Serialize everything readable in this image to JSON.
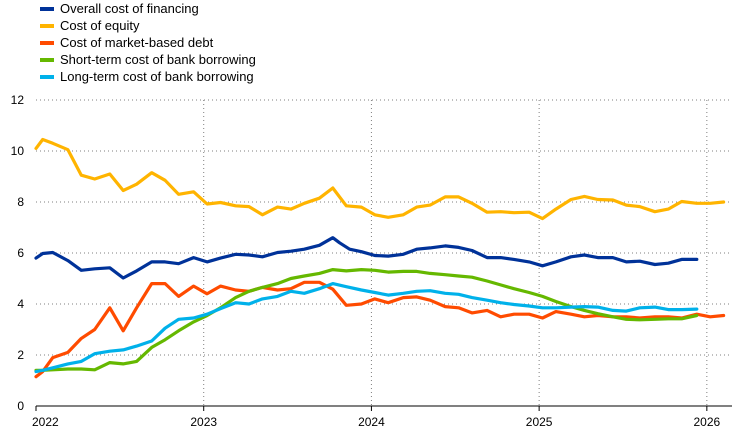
{
  "chart_data": {
    "type": "line",
    "title": "",
    "xlabel": "",
    "ylabel": "",
    "ylim": [
      0,
      12
    ],
    "yticks": [
      0,
      2,
      4,
      6,
      8,
      10,
      12
    ],
    "xlim": [
      2022.0,
      2026.15
    ],
    "xticks": [
      {
        "value": 2022,
        "label": "2022"
      },
      {
        "value": 2023,
        "label": "2023"
      },
      {
        "value": 2024,
        "label": "2024"
      },
      {
        "value": 2025,
        "label": "2025"
      },
      {
        "value": 2026,
        "label": "2026"
      }
    ],
    "x_unit": "year (fractional, monthly observations)",
    "grid": "horizontal-dashed",
    "legend_position": "top-left",
    "series": [
      {
        "name": "Overall cost of financing",
        "color": "#003299",
        "x": [
          2022.0,
          2022.04,
          2022.1,
          2022.19,
          2022.27,
          2022.35,
          2022.44,
          2022.52,
          2022.6,
          2022.69,
          2022.77,
          2022.85,
          2022.94,
          2023.02,
          2023.1,
          2023.19,
          2023.27,
          2023.35,
          2023.44,
          2023.52,
          2023.6,
          2023.69,
          2023.77,
          2023.81,
          2023.87,
          2023.94,
          2024.02,
          2024.1,
          2024.19,
          2024.27,
          2024.35,
          2024.44,
          2024.52,
          2024.6,
          2024.69,
          2024.77,
          2024.85,
          2024.94,
          2025.02,
          2025.1,
          2025.19,
          2025.27,
          2025.35,
          2025.44,
          2025.52,
          2025.6,
          2025.69,
          2025.77,
          2025.85,
          2025.94
        ],
        "y": [
          5.8,
          5.98,
          6.02,
          5.7,
          5.32,
          5.38,
          5.42,
          5.02,
          5.3,
          5.65,
          5.65,
          5.58,
          5.82,
          5.65,
          5.8,
          5.95,
          5.92,
          5.85,
          6.02,
          6.07,
          6.15,
          6.3,
          6.6,
          6.4,
          6.15,
          6.05,
          5.9,
          5.88,
          5.95,
          6.15,
          6.2,
          6.28,
          6.22,
          6.1,
          5.82,
          5.82,
          5.75,
          5.65,
          5.5,
          5.65,
          5.85,
          5.92,
          5.82,
          5.82,
          5.65,
          5.68,
          5.55,
          5.6,
          5.75,
          5.75
        ]
      },
      {
        "name": "Cost of equity",
        "color": "#FFB400",
        "x": [
          2022.0,
          2022.04,
          2022.1,
          2022.19,
          2022.27,
          2022.35,
          2022.44,
          2022.52,
          2022.6,
          2022.69,
          2022.77,
          2022.85,
          2022.94,
          2023.02,
          2023.1,
          2023.19,
          2023.27,
          2023.35,
          2023.44,
          2023.52,
          2023.6,
          2023.69,
          2023.77,
          2023.85,
          2023.94,
          2024.02,
          2024.1,
          2024.19,
          2024.27,
          2024.35,
          2024.44,
          2024.52,
          2024.6,
          2024.69,
          2024.77,
          2024.85,
          2024.94,
          2025.02,
          2025.1,
          2025.19,
          2025.27,
          2025.35,
          2025.44,
          2025.52,
          2025.6,
          2025.69,
          2025.77,
          2025.85,
          2025.94,
          2026.02,
          2026.1
        ],
        "y": [
          10.1,
          10.45,
          10.3,
          10.05,
          9.05,
          8.9,
          9.1,
          8.45,
          8.7,
          9.15,
          8.85,
          8.3,
          8.4,
          7.92,
          7.98,
          7.85,
          7.82,
          7.5,
          7.8,
          7.72,
          7.95,
          8.15,
          8.55,
          7.85,
          7.8,
          7.5,
          7.4,
          7.5,
          7.8,
          7.88,
          8.2,
          8.2,
          7.95,
          7.6,
          7.62,
          7.58,
          7.6,
          7.35,
          7.72,
          8.1,
          8.22,
          8.1,
          8.08,
          7.88,
          7.82,
          7.62,
          7.72,
          8.02,
          7.95,
          7.95,
          8.0
        ]
      },
      {
        "name": "Cost of market-based debt",
        "color": "#FF4B00",
        "x": [
          2022.0,
          2022.04,
          2022.1,
          2022.19,
          2022.27,
          2022.35,
          2022.44,
          2022.52,
          2022.6,
          2022.69,
          2022.77,
          2022.85,
          2022.94,
          2023.02,
          2023.1,
          2023.19,
          2023.27,
          2023.35,
          2023.44,
          2023.52,
          2023.6,
          2023.69,
          2023.77,
          2023.85,
          2023.94,
          2024.02,
          2024.1,
          2024.19,
          2024.27,
          2024.35,
          2024.44,
          2024.52,
          2024.6,
          2024.69,
          2024.77,
          2024.85,
          2024.94,
          2025.02,
          2025.1,
          2025.19,
          2025.27,
          2025.35,
          2025.44,
          2025.52,
          2025.6,
          2025.69,
          2025.77,
          2025.85,
          2025.94,
          2026.02,
          2026.1
        ],
        "y": [
          1.15,
          1.35,
          1.9,
          2.1,
          2.65,
          3.0,
          3.85,
          2.95,
          3.85,
          4.8,
          4.8,
          4.3,
          4.7,
          4.4,
          4.7,
          4.55,
          4.5,
          4.65,
          4.55,
          4.6,
          4.85,
          4.85,
          4.58,
          3.95,
          4.0,
          4.2,
          4.05,
          4.25,
          4.28,
          4.15,
          3.9,
          3.85,
          3.65,
          3.75,
          3.5,
          3.6,
          3.6,
          3.45,
          3.7,
          3.6,
          3.5,
          3.55,
          3.5,
          3.5,
          3.45,
          3.5,
          3.5,
          3.45,
          3.6,
          3.5,
          3.55
        ]
      },
      {
        "name": "Short-term cost of bank borrowing",
        "color": "#65B800",
        "x": [
          2022.0,
          2022.04,
          2022.1,
          2022.19,
          2022.27,
          2022.35,
          2022.44,
          2022.52,
          2022.6,
          2022.69,
          2022.77,
          2022.85,
          2022.94,
          2023.02,
          2023.1,
          2023.19,
          2023.27,
          2023.35,
          2023.44,
          2023.52,
          2023.6,
          2023.69,
          2023.77,
          2023.85,
          2023.94,
          2024.02,
          2024.1,
          2024.19,
          2024.27,
          2024.35,
          2024.44,
          2024.52,
          2024.6,
          2024.69,
          2024.77,
          2024.85,
          2024.94,
          2025.02,
          2025.1,
          2025.19,
          2025.27,
          2025.35,
          2025.44,
          2025.52,
          2025.6,
          2025.69,
          2025.77,
          2025.85,
          2025.94
        ],
        "y": [
          1.4,
          1.4,
          1.42,
          1.45,
          1.45,
          1.42,
          1.7,
          1.65,
          1.75,
          2.3,
          2.6,
          2.95,
          3.3,
          3.55,
          3.85,
          4.25,
          4.5,
          4.65,
          4.8,
          5.0,
          5.1,
          5.2,
          5.35,
          5.3,
          5.35,
          5.32,
          5.25,
          5.28,
          5.28,
          5.2,
          5.15,
          5.1,
          5.05,
          4.9,
          4.75,
          4.6,
          4.45,
          4.3,
          4.1,
          3.9,
          3.75,
          3.62,
          3.5,
          3.4,
          3.38,
          3.4,
          3.42,
          3.42,
          3.55
        ]
      },
      {
        "name": "Long-term cost of bank borrowing",
        "color": "#00B1EA",
        "x": [
          2022.0,
          2022.04,
          2022.1,
          2022.19,
          2022.27,
          2022.35,
          2022.44,
          2022.52,
          2022.6,
          2022.69,
          2022.77,
          2022.85,
          2022.94,
          2023.02,
          2023.1,
          2023.19,
          2023.27,
          2023.35,
          2023.44,
          2023.52,
          2023.6,
          2023.69,
          2023.77,
          2023.85,
          2023.94,
          2024.02,
          2024.1,
          2024.19,
          2024.27,
          2024.35,
          2024.44,
          2024.52,
          2024.6,
          2024.69,
          2024.77,
          2024.85,
          2024.94,
          2025.02,
          2025.1,
          2025.19,
          2025.27,
          2025.35,
          2025.44,
          2025.52,
          2025.6,
          2025.69,
          2025.77,
          2025.85,
          2025.94
        ],
        "y": [
          1.35,
          1.4,
          1.5,
          1.65,
          1.75,
          2.05,
          2.15,
          2.2,
          2.35,
          2.55,
          3.05,
          3.4,
          3.45,
          3.6,
          3.82,
          4.05,
          4.0,
          4.2,
          4.3,
          4.5,
          4.42,
          4.6,
          4.8,
          4.68,
          4.55,
          4.45,
          4.35,
          4.42,
          4.5,
          4.52,
          4.42,
          4.38,
          4.25,
          4.15,
          4.05,
          3.98,
          3.92,
          3.85,
          3.85,
          3.88,
          3.9,
          3.88,
          3.75,
          3.72,
          3.85,
          3.88,
          3.78,
          3.78,
          3.8
        ]
      }
    ]
  }
}
